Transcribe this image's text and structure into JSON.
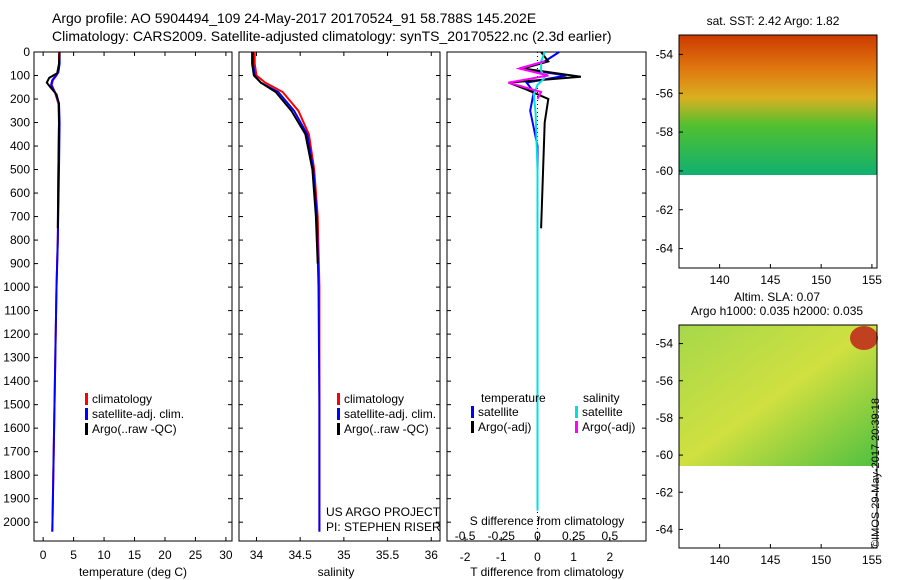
{
  "header": {
    "line1": "Argo profile: AO 5904494_109 24-May-2017 20170524_91 58.788S 145.202E",
    "line2": "Climatology: CARS2009. Satellite-adjusted climatology: synTS_20170522.nc (2.3d earlier)"
  },
  "watermark": "©IMOS 29-May-2017 20:39:18",
  "credits": {
    "project": "US ARGO PROJECT",
    "pi": "PI: STEPHEN RISER"
  },
  "chart_data": [
    {
      "type": "line",
      "panel": "temperature",
      "xlabel": "temperature (deg C)",
      "xlim": [
        -1.5,
        31
      ],
      "xticks": [
        "0",
        "5",
        "10",
        "15",
        "20",
        "25",
        "30"
      ],
      "ylim": [
        0,
        2080
      ],
      "ylabel": "",
      "yticks": [
        "0",
        "100",
        "200",
        "300",
        "400",
        "500",
        "600",
        "700",
        "800",
        "900",
        "1000",
        "1100",
        "1200",
        "1300",
        "1400",
        "1500",
        "1600",
        "1700",
        "1800",
        "1900",
        "2000"
      ],
      "legend": [
        "climatology",
        "satellite-adj. clim.",
        "Argo(..raw -QC)"
      ],
      "legend_position": "lower-right",
      "series": [
        {
          "name": "climatology",
          "color": "#ff0000",
          "x": [
            2.6,
            2.6,
            2.5,
            2.2,
            1.6,
            1.4,
            2.0,
            2.5,
            2.6,
            2.5,
            2.4,
            2.2,
            2.0,
            1.8,
            1.6,
            1.5
          ],
          "y": [
            0,
            50,
            85,
            100,
            120,
            140,
            175,
            220,
            300,
            500,
            800,
            1000,
            1300,
            1600,
            1900,
            2040
          ]
        },
        {
          "name": "satellite-adj. clim.",
          "color": "#0000ff",
          "x": [
            2.7,
            2.7,
            2.5,
            2.1,
            1.5,
            1.3,
            2.0,
            2.6,
            2.7,
            2.6,
            2.4,
            2.2,
            2.0,
            1.8,
            1.6,
            1.5
          ],
          "y": [
            0,
            50,
            85,
            100,
            120,
            140,
            175,
            220,
            300,
            500,
            800,
            1000,
            1300,
            1600,
            1900,
            2040
          ]
        },
        {
          "name": "Argo(..raw -QC)",
          "color": "#000000",
          "x": [
            2.7,
            2.6,
            2.3,
            1.0,
            0.6,
            1.2,
            2.2,
            2.6,
            2.6,
            2.5,
            2.4
          ],
          "y": [
            0,
            50,
            90,
            110,
            130,
            150,
            180,
            220,
            300,
            500,
            750
          ]
        }
      ]
    },
    {
      "type": "line",
      "panel": "salinity",
      "xlabel": "salinity",
      "xlim": [
        33.8,
        36.1
      ],
      "xticks": [
        "34",
        "34.5",
        "35",
        "35.5",
        "36"
      ],
      "ylim": [
        0,
        2080
      ],
      "legend": [
        "climatology",
        "satellite-adj. clim.",
        "Argo(..raw -QC)"
      ],
      "legend_position": "lower-right",
      "series": [
        {
          "name": "climatology",
          "color": "#ff0000",
          "x": [
            33.98,
            33.98,
            34.0,
            34.1,
            34.3,
            34.48,
            34.6,
            34.66,
            34.7,
            34.72,
            34.72,
            34.72
          ],
          "y": [
            0,
            50,
            100,
            130,
            170,
            250,
            350,
            500,
            700,
            1000,
            1500,
            2040
          ]
        },
        {
          "name": "satellite-adj. clim.",
          "color": "#0000ff",
          "x": [
            33.96,
            33.96,
            33.98,
            34.05,
            34.25,
            34.43,
            34.58,
            34.65,
            34.69,
            34.71,
            34.72,
            34.72
          ],
          "y": [
            0,
            50,
            100,
            130,
            170,
            250,
            350,
            500,
            700,
            1000,
            1500,
            2040
          ]
        },
        {
          "name": "Argo(..raw -QC)",
          "color": "#000000",
          "x": [
            33.95,
            33.95,
            33.97,
            34.05,
            34.22,
            34.4,
            34.56,
            34.64,
            34.68,
            34.7
          ],
          "y": [
            0,
            50,
            100,
            130,
            170,
            250,
            350,
            500,
            700,
            900
          ]
        }
      ]
    },
    {
      "type": "line",
      "panel": "difference",
      "xlabel": "T difference from climatology",
      "xlabel_top": "S difference from climatology",
      "xlim": [
        -2.5,
        3.0
      ],
      "xticks": [
        "-2",
        "-1",
        "0",
        "1",
        "2"
      ],
      "xticks_top": [
        "-0.5",
        "-0.25",
        "0",
        "0.25",
        "0.5"
      ],
      "ylim": [
        0,
        2080
      ],
      "legend_title_left": "temperature",
      "legend_title_right": "salinity",
      "legend": [
        "satellite",
        "Argo(-adj)",
        "satellite",
        "Argo(-adj)"
      ],
      "legend_position": "lower-center",
      "series": [
        {
          "name": "satellite",
          "group": "temperature",
          "color": "#0000ff",
          "x": [
            0.6,
            0.2,
            -0.5,
            0.8,
            -0.3,
            -0.1,
            -0.2,
            0.0,
            0.0,
            0.0
          ],
          "y": [
            0,
            40,
            70,
            100,
            130,
            170,
            250,
            400,
            1000,
            1950
          ]
        },
        {
          "name": "Argo(-adj)",
          "group": "temperature",
          "color": "#000000",
          "x": [
            0.1,
            0.3,
            -0.4,
            1.2,
            -0.8,
            -0.3,
            0.3,
            0.2,
            0.1
          ],
          "y": [
            0,
            40,
            70,
            105,
            130,
            160,
            200,
            300,
            750
          ]
        },
        {
          "name": "satellite",
          "group": "salinity",
          "color": "#00e0e0",
          "x": [
            0.2,
            0.1,
            0.1,
            0.2,
            0.0,
            -0.1,
            -0.05,
            0.0,
            0.0
          ],
          "y": [
            0,
            40,
            80,
            110,
            140,
            180,
            260,
            500,
            1950
          ]
        },
        {
          "name": "Argo(-adj)",
          "group": "salinity",
          "color": "#ff00ff",
          "x": [
            0.2,
            -0.5,
            0.3,
            -0.8,
            0.1,
            0.0
          ],
          "y": [
            40,
            70,
            100,
            130,
            170,
            200
          ]
        }
      ]
    },
    {
      "type": "heatmap",
      "panel": "sst-map",
      "title": "sat. SST: 2.42  Argo: 1.82",
      "xlim": [
        136,
        155.5
      ],
      "ylim": [
        -65,
        -53
      ],
      "xticks": [
        "140",
        "145",
        "150",
        "155"
      ],
      "yticks": [
        "-54",
        "-56",
        "-58",
        "-60",
        "-62",
        "-64"
      ],
      "data_extent_lat": [
        -60,
        -53
      ]
    },
    {
      "type": "heatmap",
      "panel": "sla-map",
      "title": "Altim. SLA: 0.07",
      "subtitle": "Argo h1000: 0.035  h2000: 0.035",
      "xlim": [
        136,
        155.5
      ],
      "ylim": [
        -65,
        -53
      ],
      "xticks": [
        "140",
        "145",
        "150",
        "155"
      ],
      "yticks": [
        "-54",
        "-56",
        "-58",
        "-60",
        "-62",
        "-64"
      ],
      "data_extent_lat": [
        -60,
        -53
      ]
    }
  ]
}
